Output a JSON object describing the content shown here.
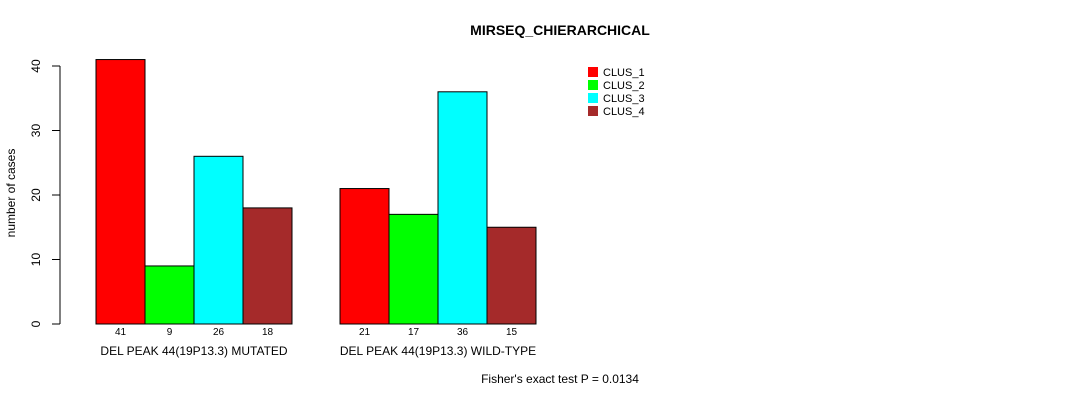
{
  "chart_data": {
    "type": "bar",
    "title": "MIRSEQ_CHIERARCHICAL",
    "ylabel": "number of cases",
    "ylim": [
      0,
      40
    ],
    "yticks": [
      0,
      10,
      20,
      30,
      40
    ],
    "legend_position": "top-right",
    "groups": [
      {
        "label": "DEL PEAK 44(19P13.3) MUTATED",
        "values": [
          41,
          9,
          26,
          18
        ],
        "value_labels": [
          "41",
          "9",
          "26",
          "18"
        ]
      },
      {
        "label": "DEL PEAK 44(19P13.3) WILD-TYPE",
        "values": [
          21,
          17,
          36,
          15
        ],
        "value_labels": [
          "21",
          "17",
          "36",
          "15"
        ]
      }
    ],
    "series": [
      {
        "name": "CLUS_1",
        "color": "#ff0000"
      },
      {
        "name": "CLUS_2",
        "color": "#00ff00"
      },
      {
        "name": "CLUS_3",
        "color": "#00ffff"
      },
      {
        "name": "CLUS_4",
        "color": "#a52a2a"
      }
    ],
    "footnote": "Fisher's exact test P = 0.0134"
  }
}
